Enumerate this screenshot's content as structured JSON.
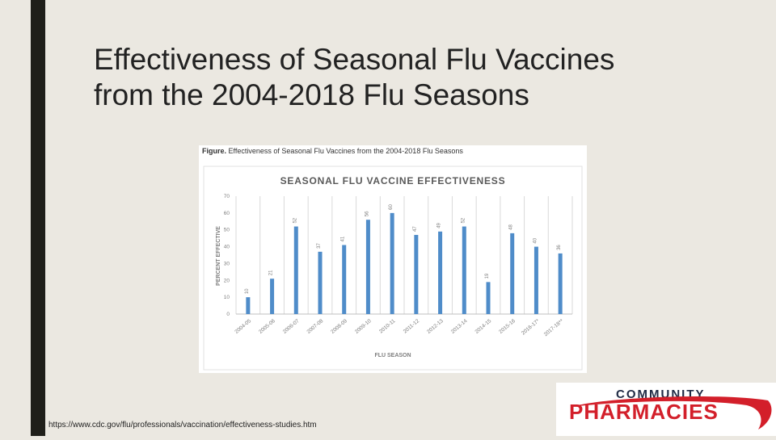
{
  "slide": {
    "title_line1": "Effectiveness of Seasonal Flu Vaccines",
    "title_line2": "from the 2004-2018 Flu Seasons",
    "source_url": "https://www.cdc.gov/flu/professionals/vaccination/effectiveness-studies.htm"
  },
  "figure": {
    "caption_prefix": "Figure.",
    "caption_text": " Effectiveness of Seasonal Flu Vaccines from the 2004-2018 Flu Seasons"
  },
  "logo": {
    "top_text": "COMMUNITY",
    "main_text": "PHARMACIES",
    "colors": {
      "top": "#1f2a44",
      "main": "#d31f2a",
      "swoosh": "#d31f2a"
    }
  },
  "colors": {
    "bar": "#4f8cc9",
    "grid": "#d9d9d9",
    "axis_text": "#7f7f7f",
    "title": "#595959",
    "left_bar": "#1f1f1a"
  },
  "chart_data": {
    "type": "bar",
    "title": "SEASONAL FLU VACCINE EFFECTIVENESS",
    "xlabel": "FLU SEASON",
    "ylabel": "PERCENT EFFECTIVE",
    "ylim": [
      0,
      70
    ],
    "yticks": [
      0,
      10,
      20,
      30,
      40,
      50,
      60,
      70
    ],
    "grid": "vertical",
    "categories": [
      "2004-05",
      "2005-06",
      "2006-07",
      "2007-08",
      "2008-09",
      "2009-10",
      "2010-11",
      "2011-12",
      "2012-13",
      "2013-14",
      "2014-15",
      "2015-16",
      "2016-17*",
      "2017-18**"
    ],
    "values": [
      10,
      21,
      52,
      37,
      41,
      56,
      60,
      47,
      49,
      52,
      19,
      48,
      40,
      36
    ]
  }
}
